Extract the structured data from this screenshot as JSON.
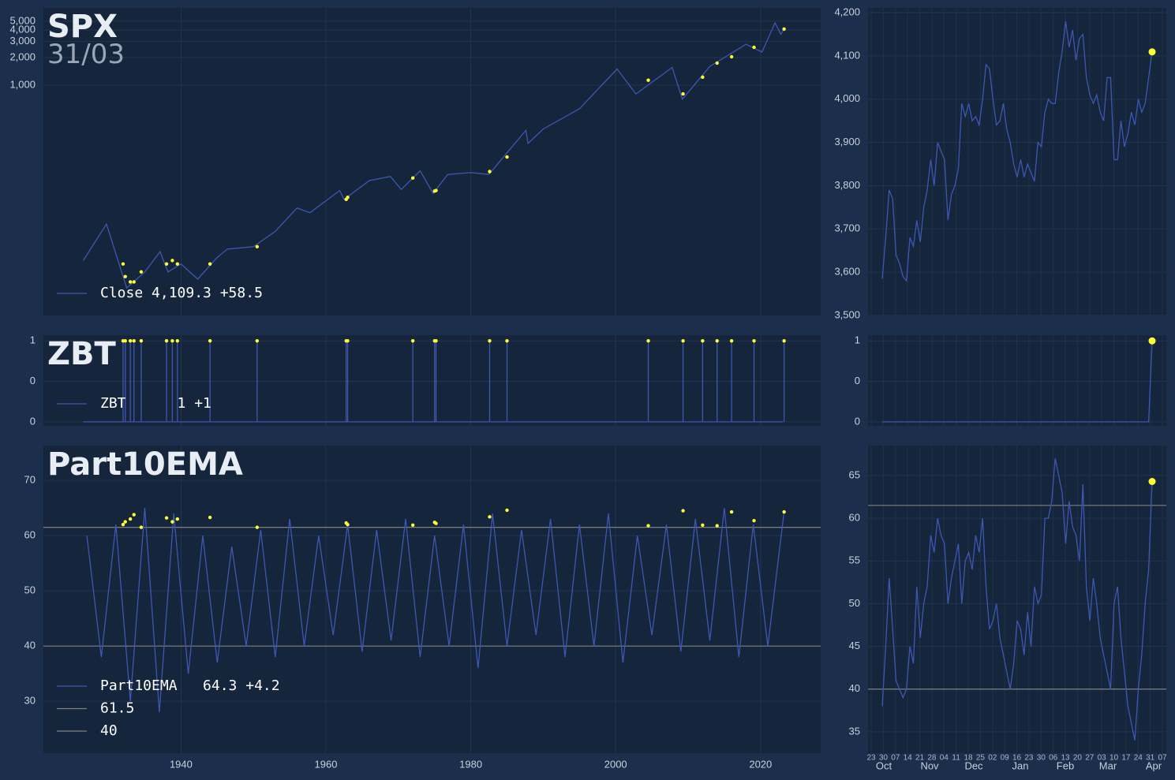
{
  "chart_data": [
    {
      "type": "line",
      "title": "SPX",
      "subtitle": "31/03",
      "log_scale": true,
      "grid": true,
      "legend": "lower left",
      "xlim": [
        1921,
        2028.3
      ],
      "ylim": [
        3,
        7000
      ],
      "yticks": [
        {
          "value": 1000,
          "label": "1,000"
        },
        {
          "value": 2000,
          "label": "2,000"
        },
        {
          "value": 3000,
          "label": "3,000"
        },
        {
          "value": 4000,
          "label": "4,000"
        },
        {
          "value": 5000,
          "label": "5,000"
        }
      ],
      "series": [
        {
          "name": "Close 4,109.3 +58.5",
          "color": "#3d57b3",
          "x": [
            1926.5,
            1929.7,
            1932.5,
            1935,
            1937.1,
            1938.2,
            1940,
            1942.3,
            1945,
            1946.4,
            1950,
            1953,
            1956,
            1957.8,
            1961.9,
            1962.5,
            1966,
            1968.9,
            1970.4,
            1973,
            1974.8,
            1976.8,
            1980,
            1982.5,
            1987.6,
            1987.9,
            1990,
            1995,
            2000.2,
            2002.8,
            2007.8,
            2009.2,
            2013,
            2018,
            2020.2,
            2022,
            2022.8,
            2023.25
          ],
          "values": [
            12,
            30,
            6,
            9,
            15,
            9,
            11,
            7.5,
            13,
            16,
            17,
            25,
            45,
            40,
            70,
            56,
            90,
            100,
            72,
            115,
            65,
            105,
            110,
            105,
            320,
            230,
            330,
            550,
            1500,
            800,
            1560,
            700,
            1600,
            2800,
            2300,
            4800,
            3600,
            4109.3
          ]
        }
      ],
      "signals": {
        "color": "#ffff33",
        "x": [
          1932.0,
          1932.3,
          1933.0,
          1933.5,
          1934.5,
          1938.0,
          1938.8,
          1939.5,
          1944.0,
          1950.5,
          1962.8,
          1963.0,
          1972.0,
          1975.0,
          1975.2,
          1982.6,
          1985.0,
          2004.5,
          2009.3,
          2012.0,
          2014.0,
          2016.0,
          2019.1,
          2023.25
        ],
        "values": [
          11,
          8,
          7,
          7,
          9,
          11,
          12,
          11,
          11,
          17,
          56,
          59,
          96,
          69,
          70,
          113,
          163,
          1130,
          800,
          1220,
          1740,
          2040,
          2590,
          4109.3
        ]
      }
    },
    {
      "type": "line",
      "grid": true,
      "last_marker": "#ffff33",
      "ylim": [
        3500,
        4211
      ],
      "yticks": [
        {
          "value": 3500,
          "label": "3,500"
        },
        {
          "value": 3600,
          "label": "3,600"
        },
        {
          "value": 3700,
          "label": "3,700"
        },
        {
          "value": 3800,
          "label": "3,800"
        },
        {
          "value": 3900,
          "label": "3,900"
        },
        {
          "value": 4000,
          "label": "4,000"
        },
        {
          "value": 4100,
          "label": "4,100"
        },
        {
          "value": 4200,
          "label": "4,200"
        }
      ],
      "series": [
        {
          "color": "#3d57b3",
          "values": [
            3585,
            3680,
            3790,
            3770,
            3640,
            3620,
            3590,
            3580,
            3680,
            3660,
            3720,
            3670,
            3750,
            3790,
            3860,
            3800,
            3900,
            3880,
            3860,
            3720,
            3780,
            3800,
            3840,
            3990,
            3960,
            3990,
            3950,
            3960,
            3940,
            4000,
            4080,
            4070,
            4000,
            3940,
            3950,
            3990,
            3930,
            3900,
            3850,
            3820,
            3860,
            3820,
            3850,
            3830,
            3810,
            3900,
            3890,
            3970,
            4000,
            3990,
            3990,
            4060,
            4110,
            4180,
            4120,
            4160,
            4090,
            4140,
            4150,
            4050,
            4010,
            3990,
            4010,
            3970,
            3950,
            4050,
            4050,
            3860,
            3860,
            3950,
            3890,
            3920,
            3970,
            3940,
            4000,
            3970,
            3990,
            4050,
            4109.3
          ]
        }
      ]
    },
    {
      "type": "line",
      "title": "ZBT",
      "grid": true,
      "legend": "lower left",
      "signal_style": "spike",
      "xlim": [
        1921,
        2028.3
      ],
      "ylim": [
        -0.05,
        1.07
      ],
      "yticks": [
        1,
        {
          "value": 0.5,
          "label": "0"
        },
        0
      ],
      "series": [
        {
          "name": "ZBT      1 +1",
          "color": "#3d57b3",
          "x": [
            1926.5,
            2023.1
          ],
          "values": [
            0,
            0
          ]
        }
      ],
      "signals": {
        "color": "#ffff33",
        "x": [
          1932.0,
          1932.3,
          1933.0,
          1933.5,
          1934.5,
          1938.0,
          1938.8,
          1939.5,
          1944.0,
          1950.5,
          1962.8,
          1963.0,
          1972.0,
          1975.0,
          1975.2,
          1982.6,
          1985.0,
          2004.5,
          2009.3,
          2012.0,
          2014.0,
          2016.0,
          2019.1,
          2023.25
        ],
        "values": [
          1,
          1,
          1,
          1,
          1,
          1,
          1,
          1,
          1,
          1,
          1,
          1,
          1,
          1,
          1,
          1,
          1,
          1,
          1,
          1,
          1,
          1,
          1,
          1
        ]
      }
    },
    {
      "type": "line",
      "grid": true,
      "last_marker": "#ffff33",
      "ylim": [
        -0.05,
        1.07
      ],
      "yticks": [
        1,
        {
          "value": 0.5,
          "label": "0"
        },
        0
      ],
      "series": [
        {
          "color": "#3d57b3",
          "values": [
            0,
            0,
            0,
            0,
            0,
            0,
            0,
            0,
            0,
            0,
            0,
            0,
            0,
            0,
            0,
            0,
            0,
            0,
            0,
            0,
            0,
            0,
            0,
            0,
            0,
            0,
            0,
            0,
            0,
            0,
            0,
            0,
            0,
            0,
            0,
            0,
            0,
            0,
            0,
            0,
            0,
            0,
            0,
            0,
            0,
            0,
            0,
            0,
            0,
            0,
            0,
            0,
            0,
            0,
            0,
            0,
            0,
            0,
            0,
            0,
            0,
            0,
            0,
            0,
            0,
            0,
            0,
            0,
            0,
            0,
            0,
            0,
            0,
            0,
            0,
            0,
            0,
            0,
            1
          ]
        }
      ]
    },
    {
      "type": "line",
      "title": "Part10EMA",
      "grid": true,
      "legend": "lower left",
      "xlim": [
        1921,
        2028.3
      ],
      "xticks": [
        1940,
        1960,
        1980,
        2000,
        2020
      ],
      "ylim": [
        20.6,
        76.3
      ],
      "yticks": [
        30,
        40,
        50,
        60,
        70
      ],
      "series": [
        {
          "name": "Part10EMA   64.3 +4.2",
          "color": "#3d57b3",
          "x": [
            1927,
            1929,
            1931,
            1933,
            1935,
            1937,
            1939,
            1941,
            1943,
            1945,
            1947,
            1949,
            1951,
            1953,
            1955,
            1957,
            1959,
            1961,
            1963,
            1965,
            1967,
            1969,
            1971,
            1973,
            1975,
            1977,
            1979,
            1981,
            1983,
            1985,
            1987,
            1989,
            1991,
            1993,
            1995,
            1997,
            1999,
            2001,
            2003,
            2005,
            2007,
            2009,
            2011,
            2013,
            2015,
            2017,
            2019,
            2021,
            2023.25
          ],
          "values": [
            60,
            38,
            62,
            30,
            65,
            28,
            64,
            35,
            60,
            37,
            58,
            40,
            61,
            38,
            63,
            40,
            60,
            42,
            62,
            39,
            61,
            41,
            63,
            38,
            60,
            40,
            62,
            36,
            64,
            40,
            61,
            42,
            63,
            38,
            62,
            40,
            64,
            37,
            60,
            42,
            62,
            39,
            63,
            41,
            65,
            38,
            62,
            40,
            64.3
          ]
        }
      ],
      "hlines": [
        {
          "name": "61.5",
          "value": 61.5,
          "color": "#808080"
        },
        {
          "name": "40",
          "value": 40,
          "color": "#808080"
        }
      ],
      "signals": {
        "color": "#ffff33",
        "x": [
          1932.0,
          1932.3,
          1933.0,
          1933.5,
          1934.5,
          1938.0,
          1938.8,
          1939.5,
          1944.0,
          1950.5,
          1962.8,
          1963.0,
          1972.0,
          1975.0,
          1975.2,
          1982.6,
          1985.0,
          2004.5,
          2009.3,
          2012.0,
          2014.0,
          2016.0,
          2019.1,
          2023.25
        ],
        "values": [
          62,
          62.5,
          63,
          63.8,
          61.5,
          63.2,
          62.5,
          63,
          63.3,
          61.5,
          62.3,
          62,
          61.9,
          62.4,
          62.2,
          63.4,
          64.6,
          61.8,
          64.5,
          61.9,
          61.8,
          64.3,
          62.7,
          64.3
        ]
      }
    },
    {
      "type": "line",
      "grid": true,
      "last_marker": "#ffff33",
      "ylim": [
        32.5,
        68.5
      ],
      "yticks": [
        35,
        40,
        45,
        50,
        55,
        60,
        65
      ],
      "x_tick_labels": [
        "23",
        "30",
        "07",
        "14",
        "21",
        "28",
        "04",
        "11",
        "18",
        "25",
        "02",
        "09",
        "16",
        "23",
        "30",
        "06",
        "13",
        "20",
        "27",
        "03",
        "10",
        "17",
        "24",
        "31",
        "07"
      ],
      "x_month_labels": [
        "Oct",
        "Nov",
        "Dec",
        "Jan",
        "Feb",
        "Mar",
        "Apr"
      ],
      "series": [
        {
          "color": "#3d57b3",
          "values": [
            38,
            45,
            53,
            47,
            41,
            40,
            39,
            40,
            45,
            43,
            52,
            46,
            50,
            52,
            58,
            56,
            60,
            58,
            57,
            50,
            53,
            55,
            57,
            50,
            55,
            56,
            54,
            58,
            56,
            60,
            52,
            47,
            48,
            50,
            46,
            44,
            42,
            40,
            43,
            48,
            47,
            44,
            49,
            45,
            52,
            50,
            51,
            60,
            60,
            62,
            67,
            65,
            63,
            57,
            62,
            59,
            58,
            55,
            64,
            52,
            48,
            53,
            50,
            46,
            44,
            42,
            40,
            50,
            52,
            46,
            42,
            38,
            36,
            34,
            40,
            44,
            50,
            54,
            64.3
          ]
        }
      ],
      "hlines": [
        {
          "value": 61.5,
          "color": "#808080"
        },
        {
          "value": 40,
          "color": "#808080"
        }
      ]
    }
  ]
}
